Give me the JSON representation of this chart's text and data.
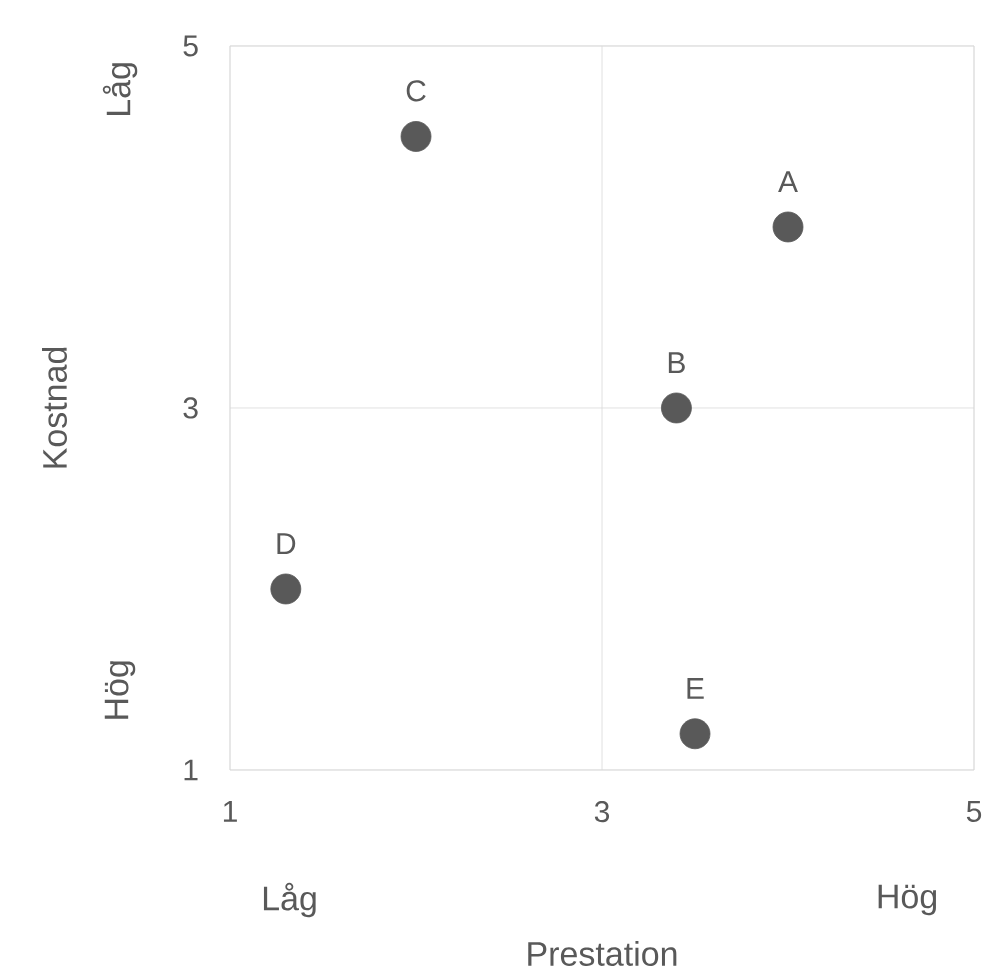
{
  "chart_data": {
    "type": "scatter",
    "xlabel": "Prestation",
    "ylabel": "Kostnad",
    "x": [
      4.0,
      3.4,
      2.0,
      1.3,
      3.5
    ],
    "values": [
      4.0,
      3.0,
      4.5,
      2.0,
      1.2
    ],
    "color": "#595959",
    "marker": "circle",
    "xlim": [
      1,
      5
    ],
    "ylim": [
      1,
      5
    ],
    "xticks": [
      1,
      3,
      5
    ],
    "yticks": [
      1,
      3,
      5
    ],
    "grid": true,
    "annotations": [
      "Låg",
      "Hög",
      "Låg",
      "Hög",
      {
        "text": "A",
        "x": 4.0,
        "y": 4.0
      },
      {
        "text": "B",
        "x": 3.4,
        "y": 3.0
      },
      {
        "text": "C",
        "x": 2.0,
        "y": 4.5
      },
      {
        "text": "D",
        "x": 1.3,
        "y": 2.0
      },
      {
        "text": "E",
        "x": 3.5,
        "y": 1.2
      }
    ]
  }
}
